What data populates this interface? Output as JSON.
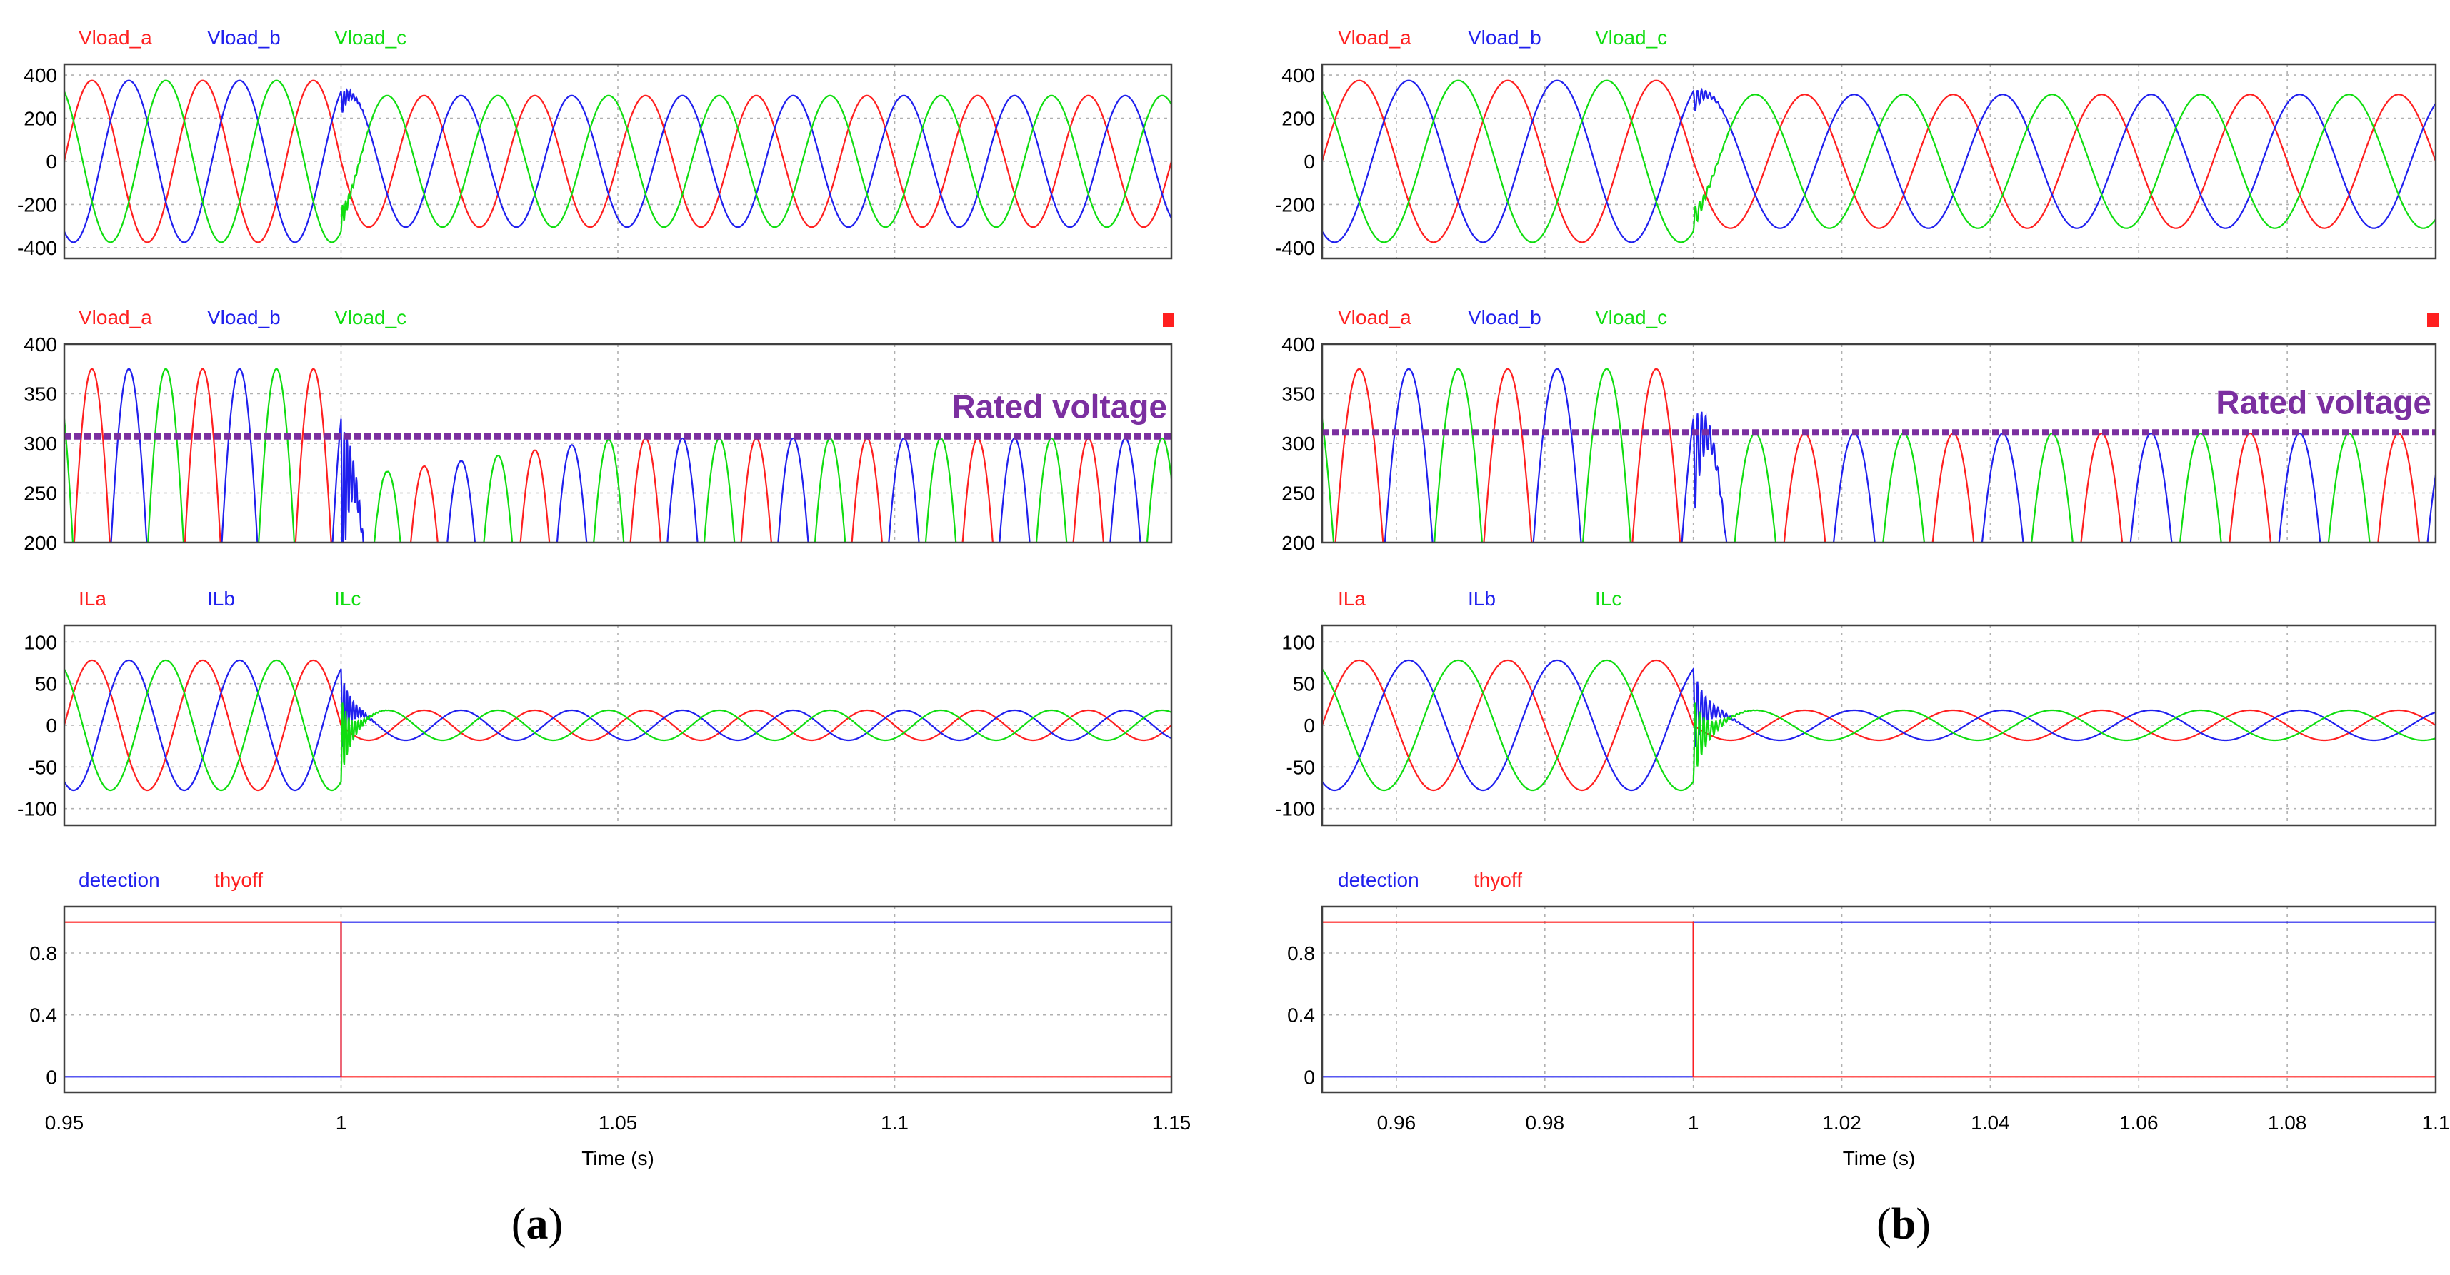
{
  "colors": {
    "phase_a": "#ff2020",
    "phase_b": "#2020ee",
    "phase_c": "#10dd10",
    "rated": "#7b2fa0",
    "frame": "#404040",
    "grid": "#b0b0b0"
  },
  "chart_data": [
    {
      "panel": "a",
      "type": "line",
      "xlabel": "Time (s)",
      "xlim": [
        0.95,
        1.15
      ],
      "xticks": [
        0.95,
        1,
        1.05,
        1.1,
        1.15
      ],
      "xtick_labels": [
        "0.95",
        "1",
        "1.05",
        "1.1",
        "1.15"
      ],
      "fault_time": 1.0,
      "frequency_hz": 50,
      "subplots": [
        {
          "kind": "voltage",
          "legend": [
            "Vload_a",
            "Vload_b",
            "Vload_c"
          ],
          "ylim": [
            -450,
            450
          ],
          "yticks": [
            -400,
            -200,
            0,
            200,
            400
          ],
          "amplitude_before": 375,
          "amplitude_after": 305,
          "phases_deg": [
            0,
            -120,
            120
          ]
        },
        {
          "kind": "voltage-zoom",
          "legend": [
            "Vload_a",
            "Vload_b",
            "Vload_c"
          ],
          "ylim": [
            200,
            400
          ],
          "yticks": [
            200,
            250,
            300,
            350,
            400
          ],
          "amplitude_before": 375,
          "amplitude_after": 305,
          "recovery_start": 265,
          "phases_deg": [
            0,
            -120,
            120
          ],
          "rated_voltage": 307,
          "annotation": "Rated voltage",
          "marker": true
        },
        {
          "kind": "current",
          "legend": [
            "ILa",
            "ILb",
            "ILc"
          ],
          "ylim": [
            -120,
            120
          ],
          "yticks": [
            -100,
            -50,
            0,
            50,
            100
          ],
          "amplitude_before": 78,
          "amplitude_after": 18,
          "phases_deg": [
            0,
            -120,
            120
          ]
        },
        {
          "kind": "digital",
          "legend": [
            "detection",
            "thyoff"
          ],
          "ylim": [
            -0.1,
            1.1
          ],
          "yticks": [
            0,
            0.4,
            0.8
          ],
          "ytick_labels": [
            "0",
            "0.4",
            "0.8"
          ],
          "detection": {
            "before": 0,
            "after": 1
          },
          "thyoff": {
            "before": 1,
            "after": 0
          }
        }
      ]
    },
    {
      "panel": "b",
      "type": "line",
      "xlabel": "Time (s)",
      "xlim": [
        0.95,
        1.1
      ],
      "xticks": [
        0.96,
        0.98,
        1,
        1.02,
        1.04,
        1.06,
        1.08,
        1.1
      ],
      "xtick_labels": [
        "0.96",
        "0.98",
        "1",
        "1.02",
        "1.04",
        "1.06",
        "1.08",
        "1.1"
      ],
      "fault_time": 1.0,
      "frequency_hz": 50,
      "subplots": [
        {
          "kind": "voltage",
          "legend": [
            "Vload_a",
            "Vload_b",
            "Vload_c"
          ],
          "ylim": [
            -450,
            450
          ],
          "yticks": [
            -400,
            -200,
            0,
            200,
            400
          ],
          "amplitude_before": 375,
          "amplitude_after": 310,
          "phases_deg": [
            0,
            -120,
            120
          ]
        },
        {
          "kind": "voltage-zoom",
          "legend": [
            "Vload_a",
            "Vload_b",
            "Vload_c"
          ],
          "ylim": [
            200,
            400
          ],
          "yticks": [
            200,
            250,
            300,
            350,
            400
          ],
          "amplitude_before": 375,
          "amplitude_after": 310,
          "recovery_start": 310,
          "phases_deg": [
            0,
            -120,
            120
          ],
          "rated_voltage": 311,
          "annotation": "Rated voltage",
          "marker": true
        },
        {
          "kind": "current",
          "legend": [
            "ILa",
            "ILb",
            "ILc"
          ],
          "ylim": [
            -120,
            120
          ],
          "yticks": [
            -100,
            -50,
            0,
            50,
            100
          ],
          "amplitude_before": 78,
          "amplitude_after": 18,
          "phases_deg": [
            0,
            -120,
            120
          ]
        },
        {
          "kind": "digital",
          "legend": [
            "detection",
            "thyoff"
          ],
          "ylim": [
            -0.1,
            1.1
          ],
          "yticks": [
            0,
            0.4,
            0.8
          ],
          "ytick_labels": [
            "0",
            "0.4",
            "0.8"
          ],
          "detection": {
            "before": 0,
            "after": 1
          },
          "thyoff": {
            "before": 1,
            "after": 0
          }
        }
      ]
    }
  ],
  "captions": {
    "a": {
      "open": "(",
      "letter": "a",
      "close": ")"
    },
    "b": {
      "open": "(",
      "letter": "b",
      "close": ")"
    }
  }
}
